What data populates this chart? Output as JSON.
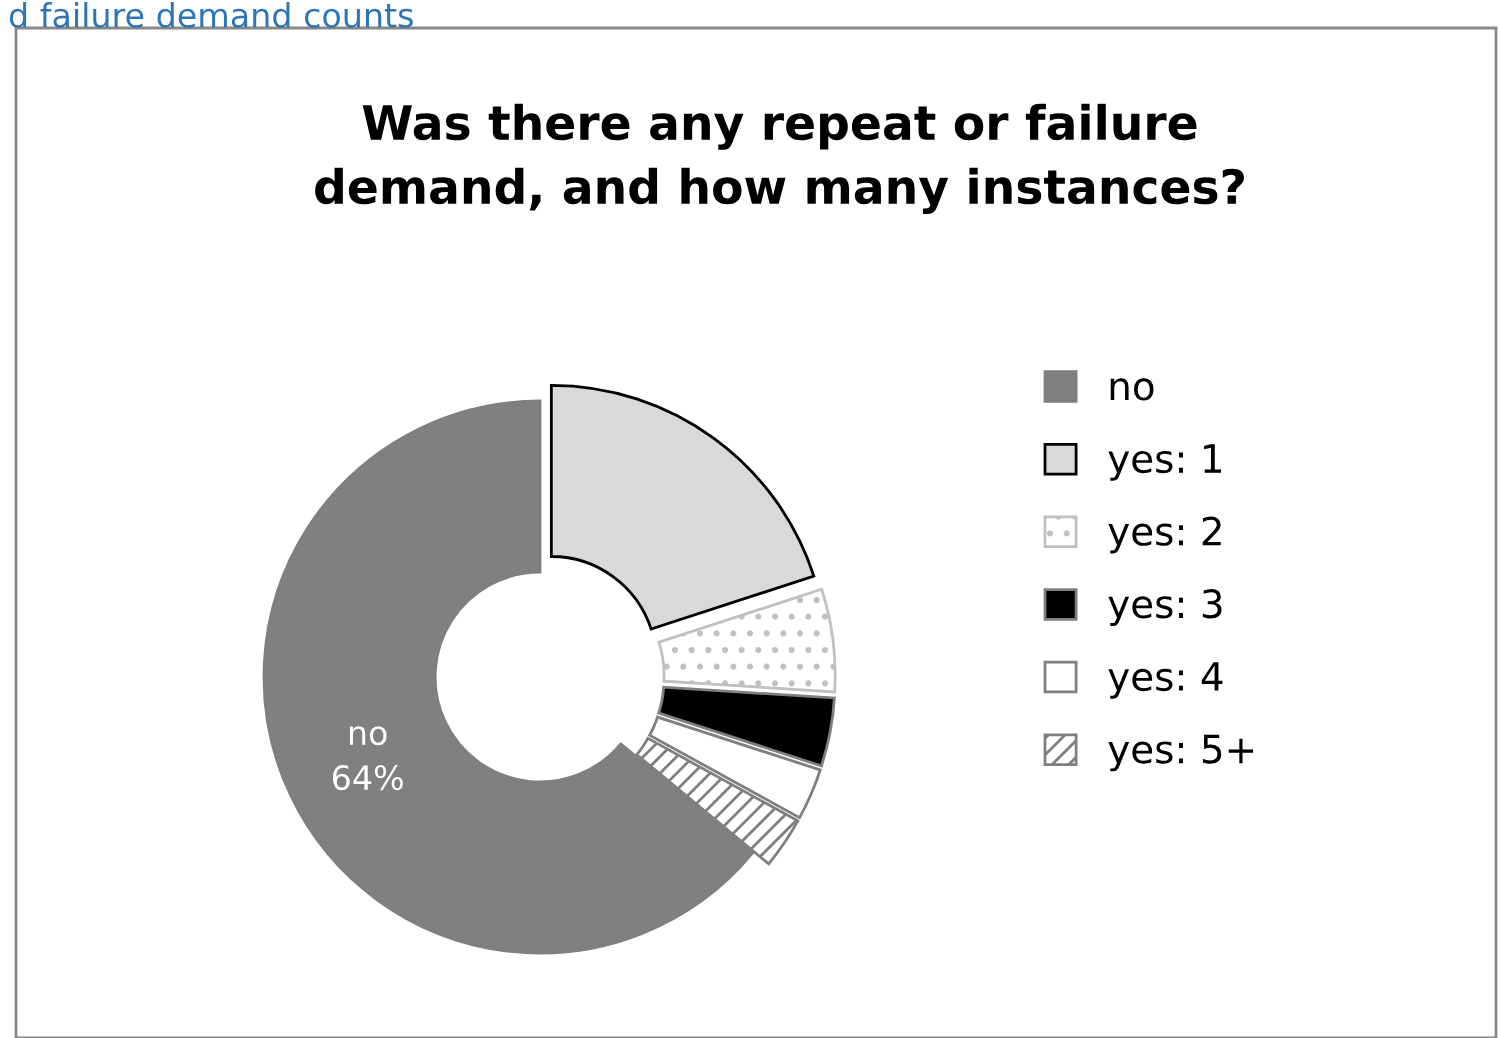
{
  "chart_data": {
    "type": "donut",
    "title": "Was there any repeat or failure\ndemand, and how many instances?",
    "annotations": [
      "d failure demand counts"
    ],
    "categories": [
      "no",
      "yes: 1",
      "yes: 2",
      "yes: 3",
      "yes: 4",
      "yes: 5+"
    ],
    "values": [
      64,
      20,
      6,
      4,
      3,
      3
    ],
    "colors": [
      "#808080",
      "#d9d9d9",
      "#c0c0c0",
      "#000000",
      "#ffffff",
      "#7f7f7f"
    ],
    "value_labels": [
      "no\n64%",
      null,
      null,
      null,
      null,
      null
    ],
    "legend": "right"
  }
}
